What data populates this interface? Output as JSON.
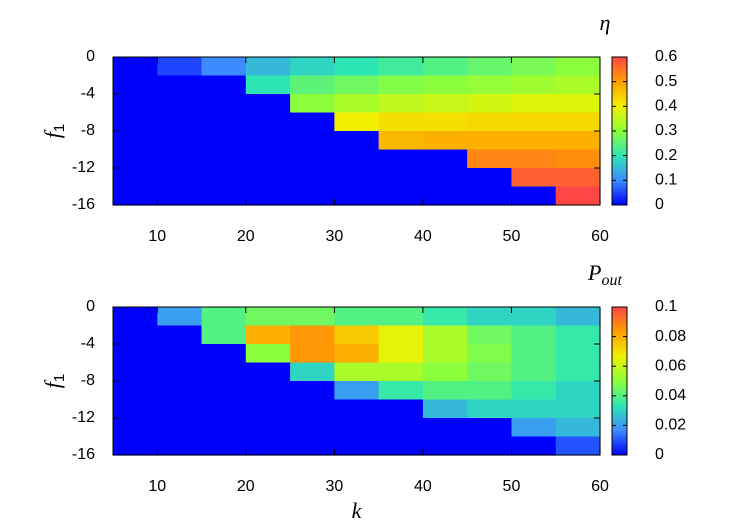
{
  "chart_data": [
    {
      "type": "heatmap",
      "colorbar_label": "η",
      "ylabel": "f",
      "ylabel_sub": "1",
      "x": [
        7.5,
        12.5,
        17.5,
        22.5,
        27.5,
        32.5,
        37.5,
        42.5,
        47.5,
        52.5,
        57.5
      ],
      "y": [
        -1,
        -3,
        -5,
        -7,
        -9,
        -11,
        -13,
        -15
      ],
      "z": [
        [
          0,
          0.05,
          0.1,
          0.15,
          0.18,
          0.2,
          0.22,
          0.24,
          0.26,
          0.28,
          0.3
        ],
        [
          0,
          0,
          0,
          0.2,
          0.25,
          0.27,
          0.29,
          0.3,
          0.31,
          0.32,
          0.33
        ],
        [
          0,
          0,
          0,
          0,
          0.3,
          0.33,
          0.35,
          0.36,
          0.37,
          0.38,
          0.38
        ],
        [
          0,
          0,
          0,
          0,
          0,
          0.4,
          0.42,
          0.42,
          0.43,
          0.43,
          0.43
        ],
        [
          0,
          0,
          0,
          0,
          0,
          0,
          0.47,
          0.48,
          0.48,
          0.48,
          0.48
        ],
        [
          0,
          0,
          0,
          0,
          0,
          0,
          0,
          0,
          0.53,
          0.53,
          0.52
        ],
        [
          0,
          0,
          0,
          0,
          0,
          0,
          0,
          0,
          0,
          0.57,
          0.57
        ],
        [
          0,
          0,
          0,
          0,
          0,
          0,
          0,
          0,
          0,
          0,
          0.6
        ]
      ],
      "xlim": [
        5,
        60
      ],
      "ylim": [
        -16,
        0
      ],
      "xticks": [
        10,
        20,
        30,
        40,
        50,
        60
      ],
      "yticks": [
        0,
        -4,
        -8,
        -12,
        -16
      ],
      "zlim": [
        0,
        0.6
      ],
      "zticks": [
        0,
        0.1,
        0.2,
        0.3,
        0.4,
        0.5,
        0.6
      ],
      "colormap": [
        "#0000ff",
        "#3c8cff",
        "#2de6b4",
        "#8cff3c",
        "#f0f000",
        "#ffa000",
        "#ff4646"
      ]
    },
    {
      "type": "heatmap",
      "colorbar_label": "P",
      "colorbar_label_sub": "out",
      "ylabel": "f",
      "ylabel_sub": "1",
      "xlabel": "k",
      "x": [
        7.5,
        12.5,
        17.5,
        22.5,
        27.5,
        32.5,
        37.5,
        42.5,
        47.5,
        52.5,
        57.5
      ],
      "y": [
        -1,
        -3,
        -5,
        -7,
        -9,
        -11,
        -13,
        -15
      ],
      "z": [
        [
          0,
          0.02,
          0.04,
          0.045,
          0.045,
          0.04,
          0.04,
          0.035,
          0.03,
          0.03,
          0.025
        ],
        [
          0,
          0,
          0.04,
          0.08,
          0.085,
          0.075,
          0.065,
          0.055,
          0.045,
          0.04,
          0.035
        ],
        [
          0,
          0,
          0,
          0.05,
          0.085,
          0.08,
          0.065,
          0.055,
          0.048,
          0.04,
          0.035
        ],
        [
          0,
          0,
          0,
          0,
          0.03,
          0.055,
          0.055,
          0.05,
          0.045,
          0.04,
          0.035
        ],
        [
          0,
          0,
          0,
          0,
          0,
          0.02,
          0.035,
          0.04,
          0.04,
          0.035,
          0.03
        ],
        [
          0,
          0,
          0,
          0,
          0,
          0,
          0,
          0.025,
          0.03,
          0.03,
          0.03
        ],
        [
          0,
          0,
          0,
          0,
          0,
          0,
          0,
          0,
          0,
          0.02,
          0.025
        ],
        [
          0,
          0,
          0,
          0,
          0,
          0,
          0,
          0,
          0,
          0,
          0.01
        ]
      ],
      "xlim": [
        5,
        60
      ],
      "ylim": [
        -16,
        0
      ],
      "xticks": [
        10,
        20,
        30,
        40,
        50,
        60
      ],
      "yticks": [
        0,
        -4,
        -8,
        -12,
        -16
      ],
      "zlim": [
        0,
        0.1
      ],
      "zticks": [
        0,
        0.02,
        0.04,
        0.06,
        0.08,
        0.1
      ],
      "colormap": [
        "#0000ff",
        "#3c8cff",
        "#2de6b4",
        "#8cff3c",
        "#f0f000",
        "#ffa000",
        "#ff4646"
      ]
    }
  ]
}
